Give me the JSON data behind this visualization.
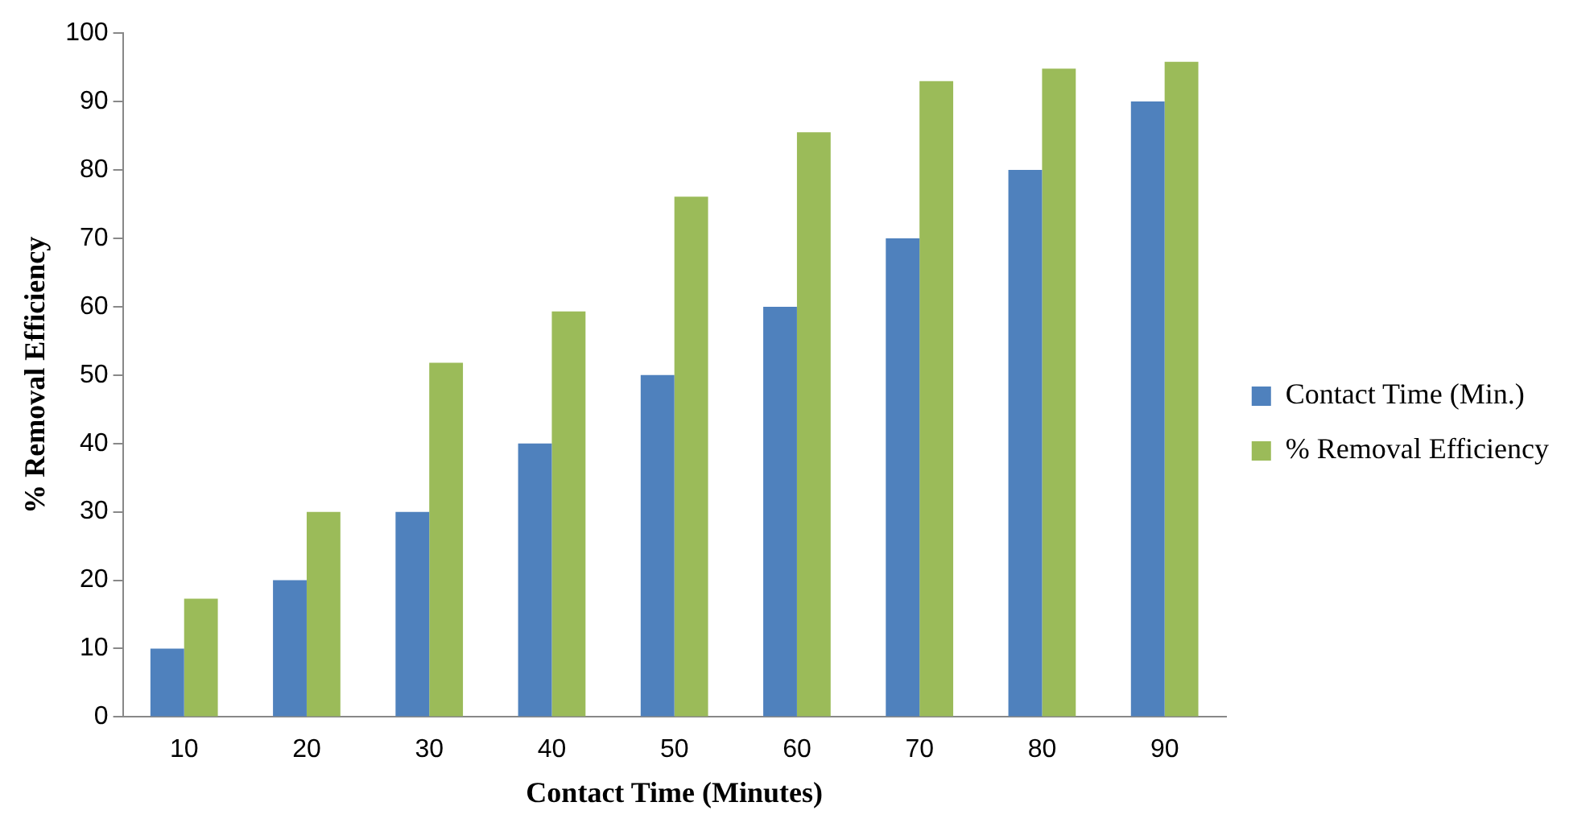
{
  "chart_data": {
    "type": "bar",
    "xlabel": "Contact Time (Minutes)",
    "ylabel": "% Removal Efficiency",
    "categories": [
      "10",
      "20",
      "30",
      "40",
      "50",
      "60",
      "70",
      "80",
      "90"
    ],
    "series": [
      {
        "name": "Contact Time (Min.)",
        "color": "#4f81bd",
        "values": [
          10,
          20,
          30,
          40,
          50,
          60,
          70,
          80,
          90
        ]
      },
      {
        "name": "% Removal Efficiency",
        "color": "#9bbb59",
        "values": [
          17.3,
          30,
          51.8,
          59.3,
          76.1,
          85.5,
          93,
          94.8,
          95.8
        ]
      }
    ],
    "ylim": [
      0,
      100
    ],
    "yticks": [
      0,
      10,
      20,
      30,
      40,
      50,
      60,
      70,
      80,
      90,
      100
    ],
    "grid": false,
    "legend": "right"
  }
}
